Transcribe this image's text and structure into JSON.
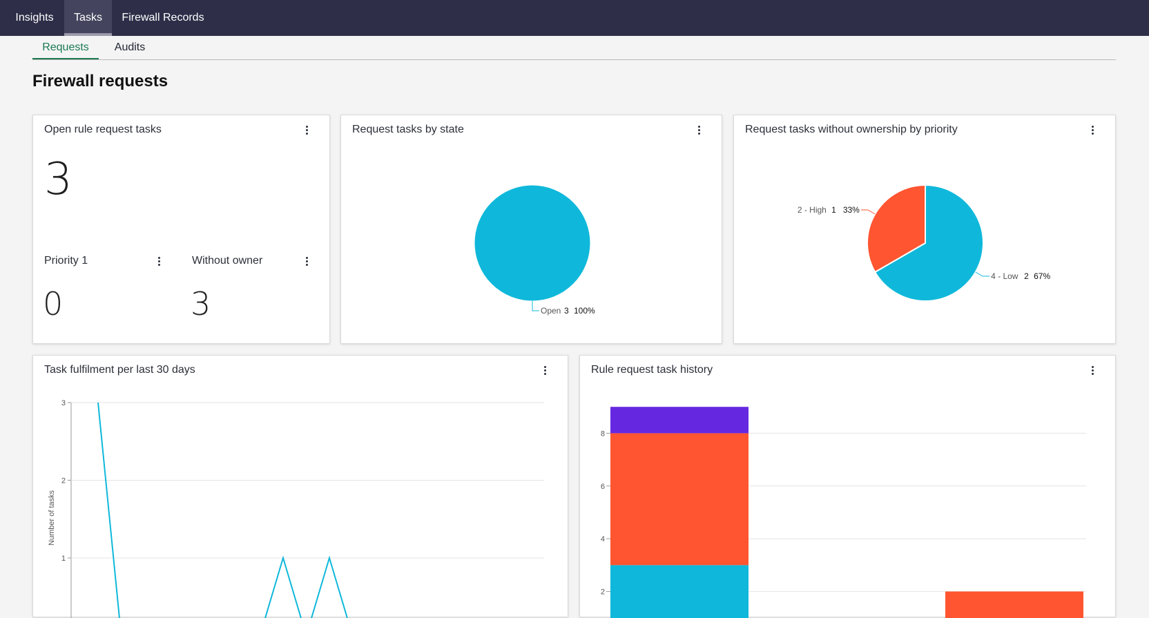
{
  "topnav": {
    "items": [
      "Insights",
      "Tasks",
      "Firewall Records"
    ],
    "active": "Tasks"
  },
  "subtabs": {
    "items": [
      "Requests",
      "Audits"
    ],
    "active": "Requests"
  },
  "page": {
    "title": "Firewall requests"
  },
  "colors": {
    "accent": "#1b7a52",
    "cyan": "#0fb8da",
    "orange": "#ff5530",
    "purple": "#6528e0"
  },
  "cards": {
    "open_tasks": {
      "title": "Open rule request tasks",
      "value": "3",
      "priority1": {
        "label": "Priority 1",
        "value": "0"
      },
      "without_owner": {
        "label": "Without owner",
        "value": "3"
      }
    },
    "by_state": {
      "title": "Request tasks by state"
    },
    "by_priority": {
      "title": "Request tasks without ownership by priority"
    },
    "fulfilment": {
      "title": "Task fulfilment per last 30 days"
    },
    "history": {
      "title": "Rule request task history"
    }
  },
  "chart_data": [
    {
      "type": "pie",
      "title": "Request tasks by state",
      "slices": [
        {
          "label": "Open",
          "value": 3,
          "percent": "100%",
          "color": "#0fb8da"
        }
      ]
    },
    {
      "type": "pie",
      "title": "Request tasks without ownership by priority",
      "slices": [
        {
          "label": "4 - Low",
          "value": 2,
          "percent": "67%",
          "color": "#0fb8da"
        },
        {
          "label": "2 - High",
          "value": 1,
          "percent": "33%",
          "color": "#ff5530"
        }
      ]
    },
    {
      "type": "line",
      "title": "Task fulfilment per last 30 days",
      "ylabel": "Number of tasks",
      "yticks": [
        1,
        2,
        3
      ],
      "ylim": [
        0,
        3
      ],
      "color": "#0fb8da",
      "points": [
        {
          "x": 1,
          "y": 3
        },
        {
          "x": 2,
          "y": 0
        },
        {
          "x": 8,
          "y": 0
        },
        {
          "x": 9,
          "y": 1
        },
        {
          "x": 10,
          "y": 0
        },
        {
          "x": 11,
          "y": 1
        },
        {
          "x": 12,
          "y": 0
        }
      ]
    },
    {
      "type": "bar",
      "title": "Rule request task history",
      "stacked": true,
      "yticks": [
        2,
        4,
        6,
        8
      ],
      "ylim": [
        0,
        9
      ],
      "categories": [
        "",
        ""
      ],
      "series": [
        {
          "color": "#0fb8da",
          "values": [
            3,
            0
          ]
        },
        {
          "color": "#ff5530",
          "values": [
            5,
            2
          ]
        },
        {
          "color": "#6528e0",
          "values": [
            1,
            0
          ]
        }
      ]
    }
  ]
}
